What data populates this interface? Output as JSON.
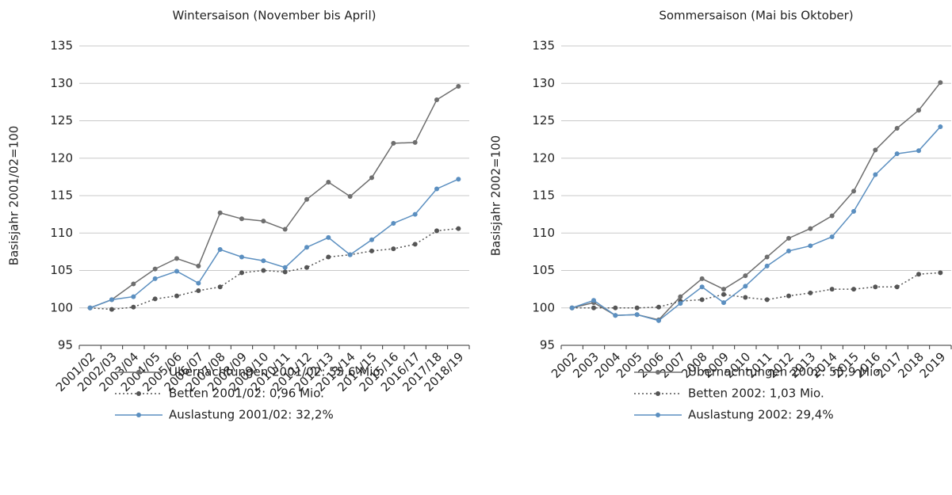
{
  "chart_data": [
    {
      "type": "line",
      "title": "Wintersaison (November bis April)",
      "y_label": "Basisjahr 2001/02=100",
      "categories": [
        "2001/02",
        "2002/03",
        "2003/04",
        "2004/05",
        "2005/06",
        "2006/07",
        "2007/08",
        "2008/09",
        "2009/10",
        "2010/11",
        "2011/12",
        "2012/13",
        "2013/14",
        "2014/15",
        "2015/16",
        "2016/17",
        "2017/18",
        "2018/19"
      ],
      "ylim": [
        95,
        135
      ],
      "yticks": [
        95,
        100,
        105,
        110,
        115,
        120,
        125,
        130,
        135
      ],
      "grid": true,
      "series": [
        {
          "name": "Übernachtungen 2001/02: 55,6 Mio.",
          "color": "#6e6e6e",
          "line_style": "solid",
          "values": [
            100,
            101.1,
            103.2,
            105.2,
            106.6,
            105.6,
            112.7,
            111.9,
            111.6,
            110.5,
            114.5,
            116.8,
            114.9,
            117.4,
            122.0,
            122.1,
            127.8,
            129.6
          ]
        },
        {
          "name": "Betten 2001/02: 0,96 Mio.",
          "color": "#555555",
          "line_style": "dotted",
          "values": [
            100,
            99.8,
            100.1,
            101.2,
            101.6,
            102.3,
            102.8,
            104.7,
            105.0,
            104.8,
            105.4,
            106.8,
            107.1,
            107.6,
            107.9,
            108.5,
            110.3,
            110.6
          ]
        },
        {
          "name": "Auslastung 2001/02: 32,2%",
          "color": "#5b8fc0",
          "line_style": "solid",
          "values": [
            100,
            101.1,
            101.5,
            103.9,
            104.9,
            103.3,
            107.8,
            106.8,
            106.3,
            105.4,
            108.1,
            109.4,
            107.1,
            109.1,
            111.3,
            112.5,
            115.9,
            117.2
          ]
        }
      ]
    },
    {
      "type": "line",
      "title": "Sommersaison (Mai bis Oktober)",
      "y_label": "Basisjahr 2002=100",
      "categories": [
        "2002",
        "2003",
        "2004",
        "2005",
        "2006",
        "2007",
        "2008",
        "2009",
        "2010",
        "2011",
        "2012",
        "2013",
        "2014",
        "2015",
        "2016",
        "2017",
        "2018",
        "2019"
      ],
      "ylim": [
        95,
        135
      ],
      "yticks": [
        95,
        100,
        105,
        110,
        115,
        120,
        125,
        130,
        135
      ],
      "grid": true,
      "series": [
        {
          "name": "Übernachtungen 2002: 55,9 Mio.",
          "color": "#6e6e6e",
          "line_style": "solid",
          "values": [
            100,
            100.7,
            99.0,
            99.1,
            98.4,
            101.5,
            103.9,
            102.5,
            104.3,
            106.8,
            109.3,
            110.6,
            112.3,
            115.6,
            121.1,
            124.0,
            126.4,
            130.1
          ]
        },
        {
          "name": "Betten 2002: 1,03 Mio.",
          "color": "#555555",
          "line_style": "dotted",
          "values": [
            100,
            100.0,
            100.0,
            100.0,
            100.1,
            100.9,
            101.1,
            101.8,
            101.4,
            101.1,
            101.6,
            102.0,
            102.5,
            102.5,
            102.8,
            102.8,
            104.5,
            104.7
          ]
        },
        {
          "name": "Auslastung 2002: 29,4%",
          "color": "#5b8fc0",
          "line_style": "solid",
          "values": [
            100,
            101.0,
            99.0,
            99.1,
            98.3,
            100.6,
            102.8,
            100.7,
            102.9,
            105.6,
            107.6,
            108.3,
            109.5,
            112.9,
            117.8,
            120.6,
            121.0,
            124.2
          ]
        }
      ]
    }
  ]
}
